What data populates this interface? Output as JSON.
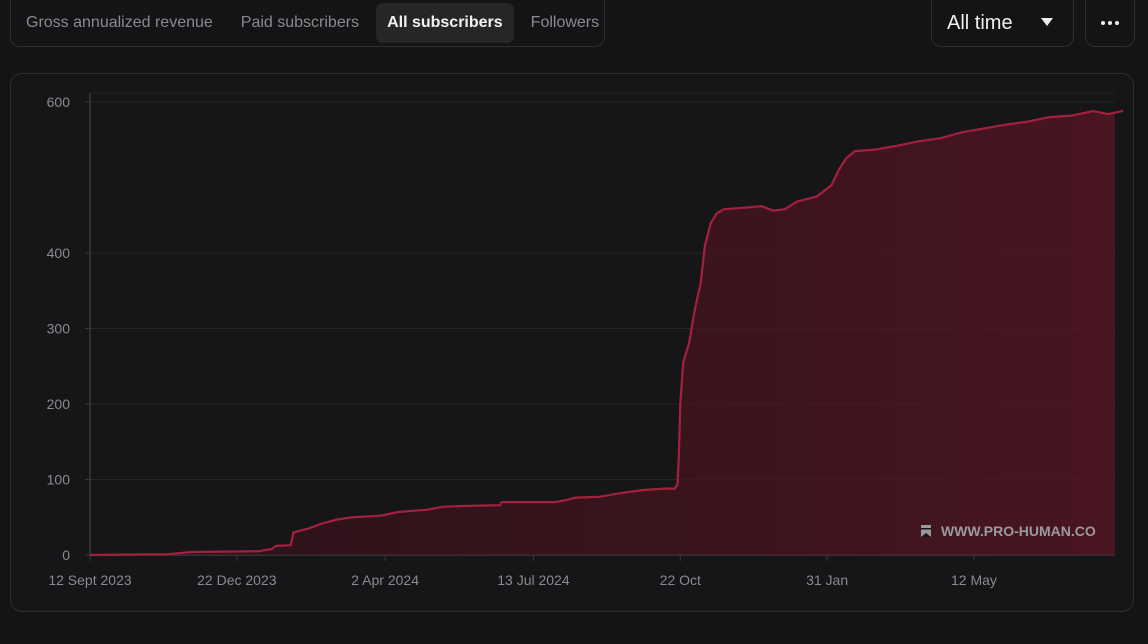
{
  "tabs": [
    {
      "label": "Gross annualized revenue",
      "active": false
    },
    {
      "label": "Paid subscribers",
      "active": false
    },
    {
      "label": "All subscribers",
      "active": true
    },
    {
      "label": "Followers",
      "active": false
    }
  ],
  "range_select": {
    "value": "All time"
  },
  "watermark": {
    "text": "WWW.PRO-HUMAN.CO"
  },
  "colors": {
    "series_line": "#a3213f",
    "series_fill": "#5a1524",
    "background": "#141416"
  },
  "chart_data": {
    "type": "area",
    "title": "",
    "xlabel": "",
    "ylabel": "",
    "ylim": [
      0,
      610
    ],
    "yticks": [
      0,
      100,
      200,
      300,
      400,
      600
    ],
    "xticks": [
      {
        "label": "12 Sept 2023",
        "day": 0
      },
      {
        "label": "22 Dec 2023",
        "day": 101
      },
      {
        "label": "2 Apr 2024",
        "day": 203
      },
      {
        "label": "13 Jul 2024",
        "day": 305
      },
      {
        "label": "22 Oct",
        "day": 406
      },
      {
        "label": "31 Jan",
        "day": 507
      },
      {
        "label": "12 May",
        "day": 608
      }
    ],
    "grid": true,
    "legend": "none",
    "series": [
      {
        "points": [
          [
            0,
            0
          ],
          [
            54,
            1
          ],
          [
            70,
            4
          ],
          [
            116,
            5
          ],
          [
            125,
            8
          ],
          [
            128,
            12
          ],
          [
            138,
            13
          ],
          [
            140,
            30
          ],
          [
            150,
            35
          ],
          [
            160,
            42
          ],
          [
            170,
            47
          ],
          [
            180,
            50
          ],
          [
            200,
            52
          ],
          [
            212,
            57
          ],
          [
            232,
            60
          ],
          [
            243,
            64
          ],
          [
            260,
            65
          ],
          [
            282,
            66
          ],
          [
            283,
            70
          ],
          [
            320,
            70
          ],
          [
            328,
            73
          ],
          [
            334,
            76
          ],
          [
            350,
            77
          ],
          [
            365,
            82
          ],
          [
            380,
            86
          ],
          [
            395,
            88
          ],
          [
            402,
            88
          ],
          [
            404,
            93
          ],
          [
            405,
            130
          ],
          [
            406,
            200
          ],
          [
            408,
            255
          ],
          [
            412,
            280
          ],
          [
            416,
            325
          ],
          [
            420,
            360
          ],
          [
            423,
            410
          ],
          [
            427,
            440
          ],
          [
            431,
            452
          ],
          [
            436,
            458
          ],
          [
            450,
            460
          ],
          [
            462,
            462
          ],
          [
            470,
            456
          ],
          [
            478,
            458
          ],
          [
            486,
            468
          ],
          [
            500,
            475
          ],
          [
            510,
            490
          ],
          [
            515,
            510
          ],
          [
            520,
            525
          ],
          [
            526,
            535
          ],
          [
            540,
            537
          ],
          [
            555,
            542
          ],
          [
            570,
            548
          ],
          [
            585,
            552
          ],
          [
            600,
            560
          ],
          [
            615,
            565
          ],
          [
            630,
            570
          ],
          [
            645,
            574
          ],
          [
            660,
            580
          ],
          [
            675,
            582
          ],
          [
            690,
            588
          ],
          [
            700,
            584
          ],
          [
            710,
            588
          ],
          [
            705,
            586
          ]
        ]
      }
    ]
  }
}
